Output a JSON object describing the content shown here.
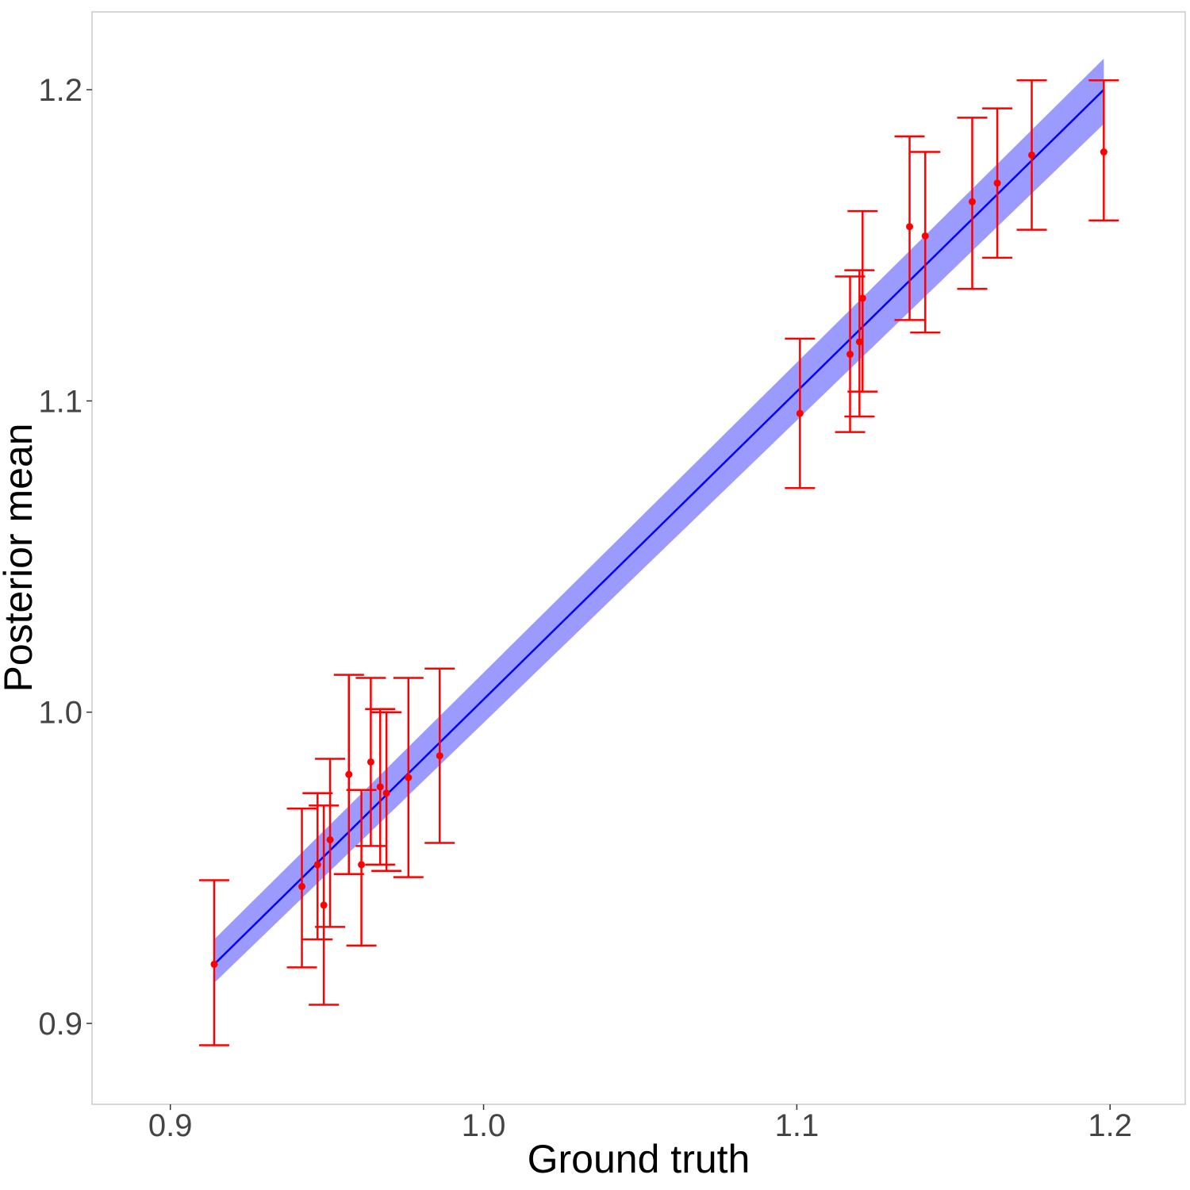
{
  "chart_data": {
    "type": "scatter",
    "title": "",
    "xlabel": "Ground truth",
    "ylabel": "Posterior mean",
    "xlim": [
      0.875,
      1.224
    ],
    "ylim": [
      0.874,
      1.225
    ],
    "x_ticks": [
      0.9,
      1.0,
      1.1,
      1.2
    ],
    "x_tick_labels": [
      "0.9",
      "1.0",
      "1.1",
      "1.2"
    ],
    "y_ticks": [
      0.9,
      1.0,
      1.1,
      1.2
    ],
    "y_tick_labels": [
      "0.9",
      "1.0",
      "1.1",
      "1.2"
    ],
    "grid": false,
    "legend": "none",
    "colors": {
      "points": "#ff0000",
      "error_bars": "#ff0000",
      "fit_line": "#0000ff",
      "fit_band": "#9a9aff",
      "panel_border": "#cccccc",
      "tick_label": "#444444"
    },
    "fit_line": {
      "x": [
        0.914,
        1.198
      ],
      "y": [
        0.919,
        1.2
      ]
    },
    "fit_band": {
      "x": [
        0.914,
        1.198
      ],
      "lower": [
        0.913,
        1.189
      ],
      "upper": [
        0.927,
        1.21
      ]
    },
    "points": [
      {
        "x": 0.914,
        "y": 0.919,
        "lower": 0.893,
        "upper": 0.946
      },
      {
        "x": 0.942,
        "y": 0.944,
        "lower": 0.918,
        "upper": 0.969
      },
      {
        "x": 0.947,
        "y": 0.951,
        "lower": 0.927,
        "upper": 0.974
      },
      {
        "x": 0.949,
        "y": 0.938,
        "lower": 0.906,
        "upper": 0.97
      },
      {
        "x": 0.951,
        "y": 0.959,
        "lower": 0.931,
        "upper": 0.985
      },
      {
        "x": 0.957,
        "y": 0.98,
        "lower": 0.948,
        "upper": 1.012
      },
      {
        "x": 0.961,
        "y": 0.951,
        "lower": 0.925,
        "upper": 0.975
      },
      {
        "x": 0.964,
        "y": 0.984,
        "lower": 0.957,
        "upper": 1.011
      },
      {
        "x": 0.967,
        "y": 0.976,
        "lower": 0.951,
        "upper": 1.001
      },
      {
        "x": 0.969,
        "y": 0.974,
        "lower": 0.949,
        "upper": 1.0
      },
      {
        "x": 0.976,
        "y": 0.979,
        "lower": 0.947,
        "upper": 1.011
      },
      {
        "x": 0.986,
        "y": 0.986,
        "lower": 0.958,
        "upper": 1.014
      },
      {
        "x": 1.101,
        "y": 1.096,
        "lower": 1.072,
        "upper": 1.12
      },
      {
        "x": 1.117,
        "y": 1.115,
        "lower": 1.09,
        "upper": 1.14
      },
      {
        "x": 1.12,
        "y": 1.119,
        "lower": 1.095,
        "upper": 1.142
      },
      {
        "x": 1.121,
        "y": 1.133,
        "lower": 1.103,
        "upper": 1.161
      },
      {
        "x": 1.136,
        "y": 1.156,
        "lower": 1.126,
        "upper": 1.185
      },
      {
        "x": 1.141,
        "y": 1.153,
        "lower": 1.122,
        "upper": 1.18
      },
      {
        "x": 1.156,
        "y": 1.164,
        "lower": 1.136,
        "upper": 1.191
      },
      {
        "x": 1.164,
        "y": 1.17,
        "lower": 1.146,
        "upper": 1.194
      },
      {
        "x": 1.175,
        "y": 1.179,
        "lower": 1.155,
        "upper": 1.203
      },
      {
        "x": 1.198,
        "y": 1.18,
        "lower": 1.158,
        "upper": 1.203
      }
    ]
  }
}
